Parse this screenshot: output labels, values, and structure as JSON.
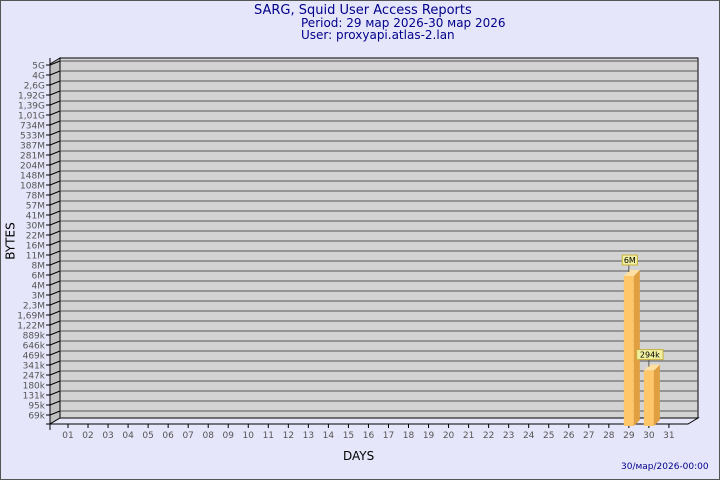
{
  "header": {
    "title": "SARG, Squid User Access Reports",
    "period": "Period: 29 мар 2026-30 мар 2026",
    "user": "User: proxyapi.atlas-2.lan"
  },
  "footer": {
    "timestamp": "30/мар/2026-00:00"
  },
  "colors": {
    "background": "#e6e6fa",
    "plot": "#d3d3d3",
    "bar_front": "#ffc66a",
    "bar_side": "#e0a040",
    "label_bg": "#f0f0a0",
    "text": "#00008b"
  },
  "chart_data": {
    "type": "bar",
    "xlabel": "DAYS",
    "ylabel": "BYTES",
    "y_scale": "log",
    "grid": true,
    "y_ticks": [
      "5G",
      "4G",
      "2,6G",
      "1,92G",
      "1,39G",
      "1,01G",
      "734M",
      "533M",
      "387M",
      "281M",
      "204M",
      "148M",
      "108M",
      "78M",
      "57M",
      "41M",
      "30M",
      "22M",
      "16M",
      "11M",
      "8M",
      "6M",
      "4M",
      "3M",
      "2,3M",
      "1,69M",
      "1,22M",
      "889k",
      "646k",
      "469k",
      "341k",
      "247k",
      "180k",
      "131k",
      "95k",
      "69k"
    ],
    "categories": [
      "01",
      "02",
      "03",
      "04",
      "05",
      "06",
      "07",
      "08",
      "09",
      "10",
      "11",
      "12",
      "13",
      "14",
      "15",
      "16",
      "17",
      "18",
      "19",
      "20",
      "21",
      "22",
      "23",
      "24",
      "25",
      "26",
      "27",
      "28",
      "29",
      "30",
      "31"
    ],
    "bars": [
      {
        "day": "29",
        "value": 6000000,
        "label": "6M"
      },
      {
        "day": "30",
        "value": 294000,
        "label": "294k"
      }
    ]
  }
}
